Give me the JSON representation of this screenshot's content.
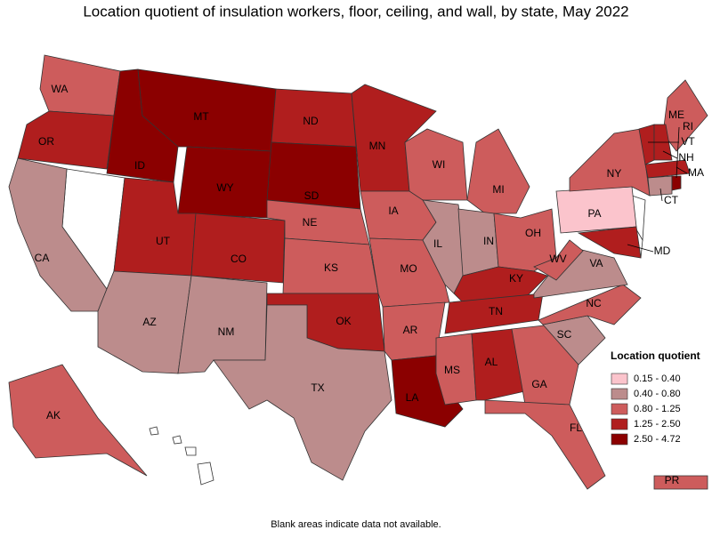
{
  "title": "Location quotient of insulation workers, floor, ceiling, and wall, by state, May 2022",
  "legend": {
    "title": "Location quotient",
    "items": [
      {
        "label": "0.15 - 0.40",
        "color": "#fbc4cc"
      },
      {
        "label": "0.40 - 0.80",
        "color": "#bc8c8c"
      },
      {
        "label": "0.80 - 1.25",
        "color": "#cd5c5c"
      },
      {
        "label": "1.25 - 2.50",
        "color": "#b01e1e"
      },
      {
        "label": "2.50 - 4.72",
        "color": "#8b0000"
      }
    ]
  },
  "states": [
    {
      "label": "WA",
      "class": 2
    },
    {
      "label": "OR",
      "class": 3
    },
    {
      "label": "CA",
      "class": 1
    },
    {
      "label": "ID",
      "class": 4
    },
    {
      "label": "MT",
      "class": 4
    },
    {
      "label": "WY",
      "class": 4
    },
    {
      "label": "UT",
      "class": 3
    },
    {
      "label": "CO",
      "class": 3
    },
    {
      "label": "AZ",
      "class": 1
    },
    {
      "label": "NM",
      "class": 1
    },
    {
      "label": "ND",
      "class": 3
    },
    {
      "label": "SD",
      "class": 4
    },
    {
      "label": "NE",
      "class": 2
    },
    {
      "label": "KS",
      "class": 2
    },
    {
      "label": "OK",
      "class": 3
    },
    {
      "label": "TX",
      "class": 1
    },
    {
      "label": "MN",
      "class": 3
    },
    {
      "label": "IA",
      "class": 2
    },
    {
      "label": "MO",
      "class": 2
    },
    {
      "label": "AR",
      "class": 2
    },
    {
      "label": "LA",
      "class": 4
    },
    {
      "label": "WI",
      "class": 2
    },
    {
      "label": "IL",
      "class": 1
    },
    {
      "label": "MI",
      "class": 2
    },
    {
      "label": "IN",
      "class": 1
    },
    {
      "label": "OH",
      "class": 2
    },
    {
      "label": "KY",
      "class": 3
    },
    {
      "label": "TN",
      "class": 3
    },
    {
      "label": "MS",
      "class": 2
    },
    {
      "label": "AL",
      "class": 3
    },
    {
      "label": "GA",
      "class": 2
    },
    {
      "label": "FL",
      "class": 2
    },
    {
      "label": "SC",
      "class": 1
    },
    {
      "label": "NC",
      "class": 2
    },
    {
      "label": "VA",
      "class": 1
    },
    {
      "label": "WV",
      "class": 2
    },
    {
      "label": "PA",
      "class": 0
    },
    {
      "label": "NY",
      "class": 2
    },
    {
      "label": "MD",
      "class": 3
    },
    {
      "label": "ME",
      "class": 2
    },
    {
      "label": "VT",
      "class": 3
    },
    {
      "label": "NH",
      "class": 3
    },
    {
      "label": "MA",
      "class": 3
    },
    {
      "label": "CT",
      "class": 1
    },
    {
      "label": "RI",
      "class": 4
    },
    {
      "label": "AK",
      "class": 2
    },
    {
      "label": "PR",
      "class": 2
    }
  ],
  "footnote": "Blank areas indicate data not available."
}
